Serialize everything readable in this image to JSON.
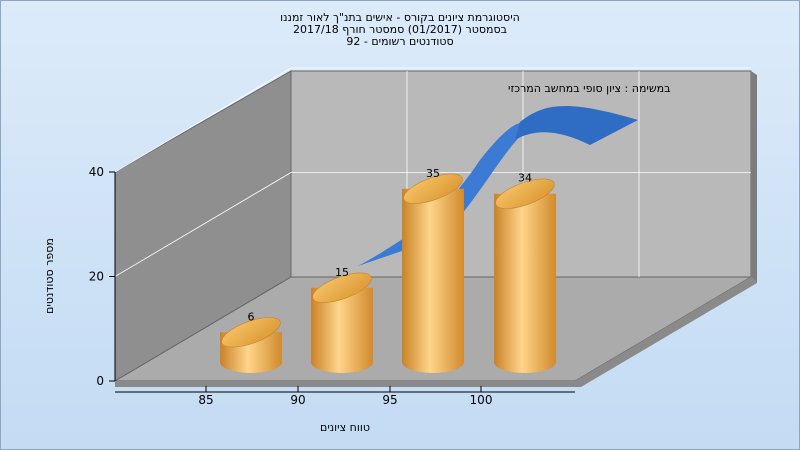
{
  "chart_data": {
    "type": "bar",
    "title": [
      "היסטוגרמת ציונים בקורס - אישים בתנ\"ך לאור זמננו",
      "בסמסטר   (01/2017)   סמסטר חורף  2017/18",
      "סטודנטים רשומים - 92"
    ],
    "subtitle": "במשימה : ציון סופי במחשב המרכזי",
    "xlabel": "טווח ציונים",
    "ylabel": "מספר סטודנטים",
    "categories": [
      "85",
      "90",
      "95",
      "100"
    ],
    "values": [
      6,
      15,
      35,
      34
    ],
    "y_ticks": [
      0,
      20,
      40
    ],
    "ylim": [
      0,
      40
    ],
    "grid": true,
    "colors": {
      "bar": "#f2b253",
      "bar_dark": "#c8822a",
      "curve": "#3b7bd4",
      "back_wall": "#b7b7b7",
      "side_wall": "#8c8c8c",
      "floor": "#a9a9a9"
    }
  }
}
